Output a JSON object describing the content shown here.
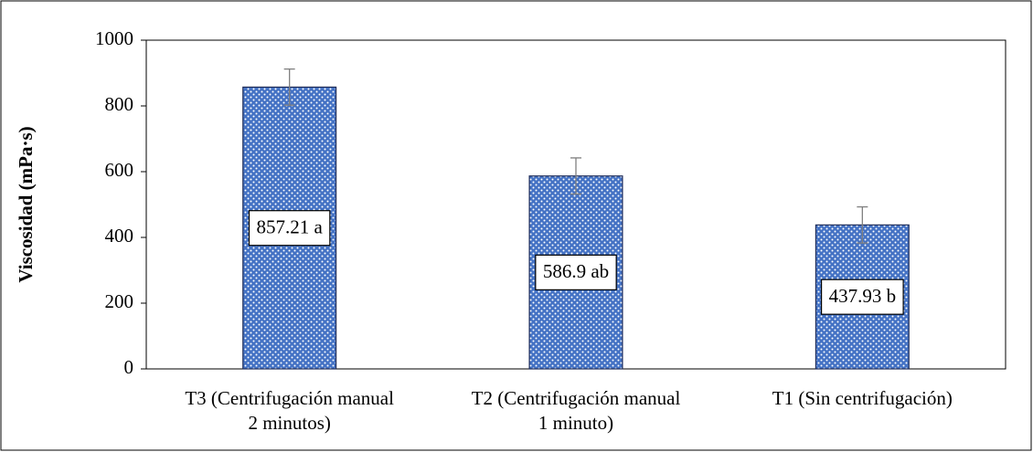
{
  "chart_data": {
    "type": "bar",
    "y_label": "Viscosidad (mPa·s)",
    "categories": [
      "T3 (Centrifugación manual\n2 minutos)",
      "T2 (Centrifugación manual\n1 minuto)",
      "T1 (Sin centrifugación)"
    ],
    "values": [
      857.21,
      586.9,
      437.93
    ],
    "value_labels": [
      "857.21 a",
      "586.9 ab",
      "437.93 b"
    ],
    "errors": [
      55,
      55,
      55
    ],
    "color": "#4472c4",
    "ylim": [
      0,
      1000
    ],
    "yticks": [
      0,
      200,
      400,
      600,
      800,
      1000
    ],
    "grid": false
  }
}
